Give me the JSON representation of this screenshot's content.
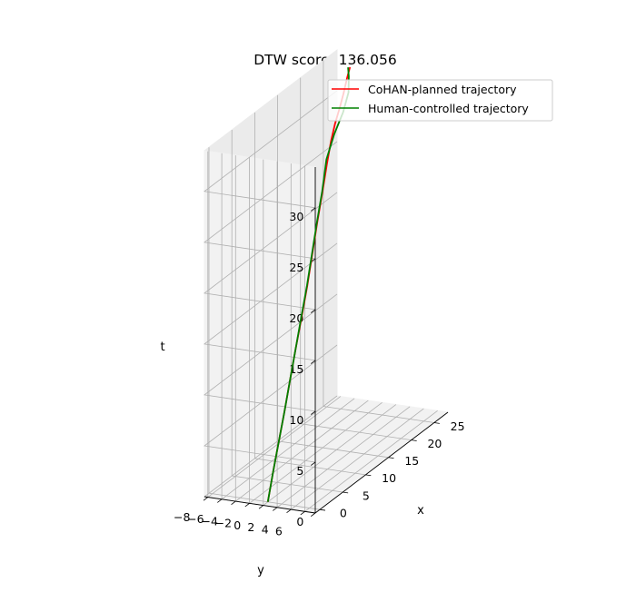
{
  "chart_data": {
    "type": "line",
    "projection": "3d",
    "title": "DTW score: 136.056",
    "xlabel": "x",
    "ylabel": "y",
    "zlabel": "t",
    "x_ticks": [
      "0",
      "5",
      "10",
      "15",
      "20",
      "25"
    ],
    "y_ticks": [
      "6",
      "4",
      "2",
      "0",
      "−2",
      "−4",
      "−6",
      "−8"
    ],
    "z_ticks": [
      "0",
      "5",
      "10",
      "15",
      "20",
      "25",
      "30"
    ],
    "xlim": [
      -1,
      28
    ],
    "ylim": [
      -8.5,
      7.5
    ],
    "zlim": [
      0,
      34
    ],
    "grid": true,
    "legend_position": "top-right",
    "series": [
      {
        "name": "CoHAN-planned trajectory",
        "color": "#ff0000",
        "points": [
          {
            "x": 0.0,
            "y": 0.0,
            "t": 0.0
          },
          {
            "x": 1.3,
            "y": -0.1,
            "t": 2.5
          },
          {
            "x": 2.7,
            "y": -0.2,
            "t": 5.0
          },
          {
            "x": 4.1,
            "y": -0.3,
            "t": 7.5
          },
          {
            "x": 5.6,
            "y": -0.5,
            "t": 10.0
          },
          {
            "x": 7.1,
            "y": -0.7,
            "t": 12.5
          },
          {
            "x": 8.7,
            "y": -0.9,
            "t": 15.0
          },
          {
            "x": 10.4,
            "y": -1.2,
            "t": 17.5
          },
          {
            "x": 12.1,
            "y": -1.6,
            "t": 20.0
          },
          {
            "x": 13.8,
            "y": -2.0,
            "t": 22.5
          },
          {
            "x": 15.6,
            "y": -2.4,
            "t": 25.0
          },
          {
            "x": 17.3,
            "y": -2.9,
            "t": 27.0
          },
          {
            "x": 18.8,
            "y": -3.3,
            "t": 28.7
          },
          {
            "x": 20.0,
            "y": -3.5,
            "t": 30.0
          },
          {
            "x": 21.0,
            "y": -3.5,
            "t": 31.2
          },
          {
            "x": 22.0,
            "y": -3.6,
            "t": 32.3
          },
          {
            "x": 23.2,
            "y": -3.9,
            "t": 33.3
          },
          {
            "x": 24.3,
            "y": -4.2,
            "t": 34.0
          }
        ]
      },
      {
        "name": "Human-controlled trajectory",
        "color": "#008000",
        "points": [
          {
            "x": 0.0,
            "y": 0.0,
            "t": 0.0
          },
          {
            "x": 1.3,
            "y": -0.1,
            "t": 2.5
          },
          {
            "x": 2.7,
            "y": -0.2,
            "t": 5.0
          },
          {
            "x": 4.1,
            "y": -0.3,
            "t": 7.5
          },
          {
            "x": 5.6,
            "y": -0.5,
            "t": 10.0
          },
          {
            "x": 7.1,
            "y": -0.7,
            "t": 12.5
          },
          {
            "x": 8.8,
            "y": -1.0,
            "t": 15.0
          },
          {
            "x": 10.5,
            "y": -1.3,
            "t": 17.5
          },
          {
            "x": 12.2,
            "y": -1.7,
            "t": 20.0
          },
          {
            "x": 13.9,
            "y": -2.1,
            "t": 22.5
          },
          {
            "x": 15.5,
            "y": -2.4,
            "t": 25.0
          },
          {
            "x": 17.2,
            "y": -2.9,
            "t": 27.5
          },
          {
            "x": 19.8,
            "y": -3.5,
            "t": 29.0
          },
          {
            "x": 22.5,
            "y": -4.0,
            "t": 30.2
          },
          {
            "x": 24.3,
            "y": -4.4,
            "t": 31.5
          },
          {
            "x": 24.5,
            "y": -4.5,
            "t": 33.0
          },
          {
            "x": 24.2,
            "y": -4.4,
            "t": 34.0
          }
        ]
      }
    ]
  }
}
